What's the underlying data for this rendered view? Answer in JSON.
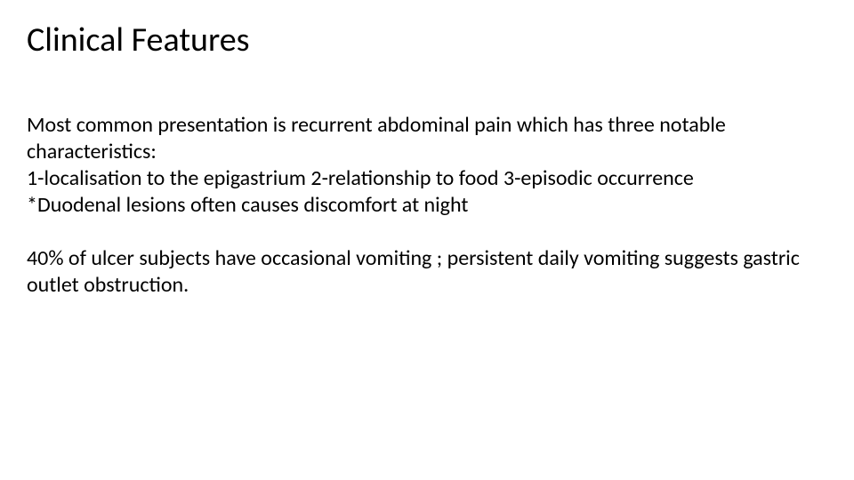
{
  "slide": {
    "title": "Clinical Features",
    "title_fontsize": 38,
    "title_color": "#000000",
    "body_fontsize": 24,
    "body_color": "#000000",
    "background_color": "#ffffff",
    "paragraph1_line1": "Most common presentation is recurrent abdominal pain which has three notable characteristics:",
    "paragraph1_line2": "1-localisation to the epigastrium  2-relationship to food 3-episodic occurrence",
    "paragraph1_line3": "*Duodenal lesions often causes discomfort at night",
    "paragraph2": "40% of ulcer subjects have occasional vomiting ; persistent daily vomiting suggests gastric outlet obstruction."
  }
}
